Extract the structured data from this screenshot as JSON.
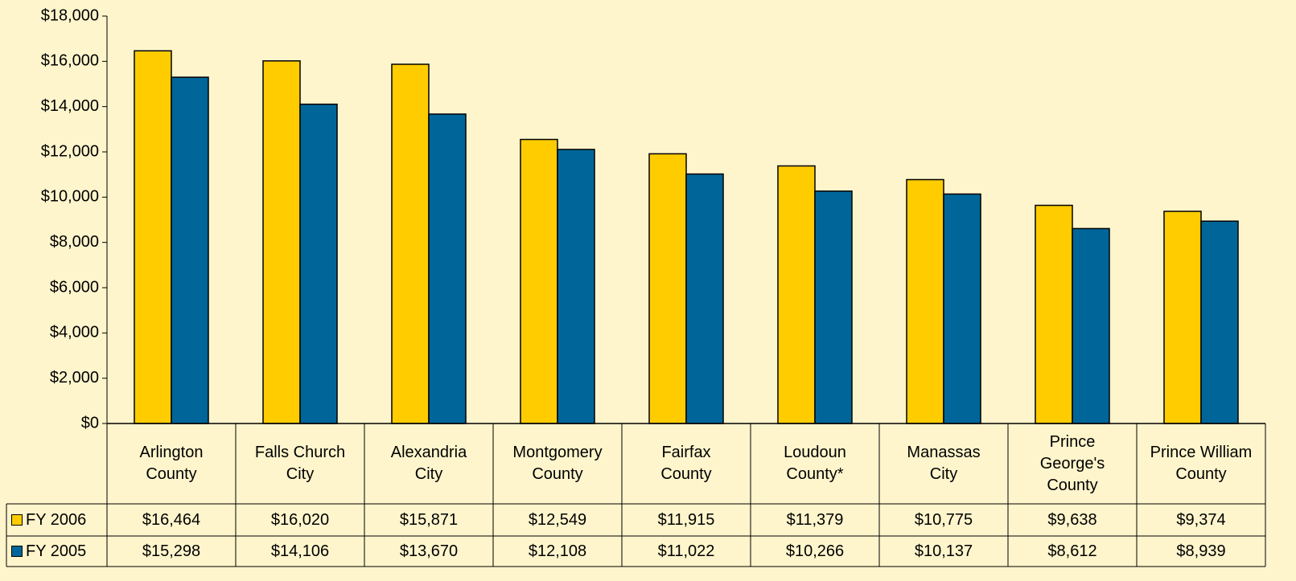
{
  "chart_data": {
    "type": "bar",
    "categories": [
      "Arlington\nCounty",
      "Falls Church\nCity",
      "Alexandria\nCity",
      "Montgomery\nCounty",
      "Fairfax\nCounty",
      "Loudoun\nCounty*",
      "Manassas\nCity",
      "Prince\nGeorge's\nCounty",
      "Prince William\nCounty"
    ],
    "series": [
      {
        "name": "FY 2006",
        "color": "#FFCC00",
        "values": [
          16464,
          16020,
          15871,
          12549,
          11915,
          11379,
          10775,
          9638,
          9374
        ],
        "value_labels": [
          "$16,464",
          "$16,020",
          "$15,871",
          "$12,549",
          "$11,915",
          "$11,379",
          "$10,775",
          "$9,638",
          "$9,374"
        ]
      },
      {
        "name": "FY 2005",
        "color": "#006699",
        "values": [
          15298,
          14106,
          13670,
          12108,
          11022,
          10266,
          10137,
          8612,
          8939
        ],
        "value_labels": [
          "$15,298",
          "$14,106",
          "$13,670",
          "$12,108",
          "$11,022",
          "$10,266",
          "$10,137",
          "$8,612",
          "$8,939"
        ]
      }
    ],
    "ylim": [
      0,
      18000
    ],
    "yticks": [
      {
        "value": 0,
        "label": "$0"
      },
      {
        "value": 2000,
        "label": "$2,000"
      },
      {
        "value": 4000,
        "label": "$4,000"
      },
      {
        "value": 6000,
        "label": "$6,000"
      },
      {
        "value": 8000,
        "label": "$8,000"
      },
      {
        "value": 10000,
        "label": "$10,000"
      },
      {
        "value": 12000,
        "label": "$12,000"
      },
      {
        "value": 14000,
        "label": "$14,000"
      },
      {
        "value": 16000,
        "label": "$16,000"
      },
      {
        "value": 18000,
        "label": "$18,000"
      }
    ]
  }
}
